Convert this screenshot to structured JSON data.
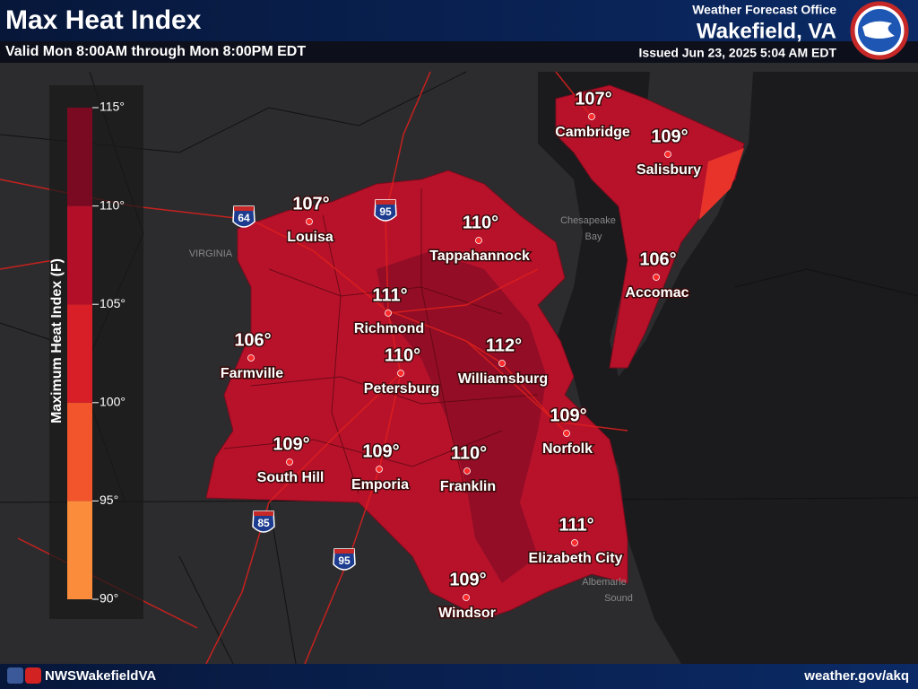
{
  "header": {
    "title": "Max Heat Index",
    "subtitle": "Valid Mon 8:00AM through Mon 8:00PM EDT",
    "office_label": "Weather Forecast Office",
    "office": "Wakefield, VA",
    "issued": "Issued Jun 23, 2025 5:04 AM EDT"
  },
  "legend": {
    "title": "Maximum Heat Index (F)",
    "ticks": [
      {
        "value": 90,
        "label": "90°"
      },
      {
        "value": 95,
        "label": "95°"
      },
      {
        "value": 100,
        "label": "100°"
      },
      {
        "value": 105,
        "label": "105°"
      },
      {
        "value": 110,
        "label": "110°"
      },
      {
        "value": 115,
        "label": "115°"
      }
    ],
    "colors": [
      "#fb8c3c",
      "#f2542c",
      "#d81f28",
      "#b30f29",
      "#7a0a22"
    ]
  },
  "cities": [
    {
      "name": "Cambridge",
      "value": 107,
      "label": "107°"
    },
    {
      "name": "Salisbury",
      "value": 109,
      "label": "109°"
    },
    {
      "name": "Louisa",
      "value": 107,
      "label": "107°"
    },
    {
      "name": "Tappahannock",
      "value": 110,
      "label": "110°"
    },
    {
      "name": "Accomac",
      "value": 106,
      "label": "106°"
    },
    {
      "name": "Richmond",
      "value": 111,
      "label": "111°"
    },
    {
      "name": "Farmville",
      "value": 106,
      "label": "106°"
    },
    {
      "name": "Petersburg",
      "value": 110,
      "label": "110°"
    },
    {
      "name": "Williamsburg",
      "value": 112,
      "label": "112°"
    },
    {
      "name": "Norfolk",
      "value": 109,
      "label": "109°"
    },
    {
      "name": "South Hill",
      "value": 109,
      "label": "109°"
    },
    {
      "name": "Emporia",
      "value": 109,
      "label": "109°"
    },
    {
      "name": "Franklin",
      "value": 110,
      "label": "110°"
    },
    {
      "name": "Elizabeth City",
      "value": 111,
      "label": "111°"
    },
    {
      "name": "Windsor",
      "value": 109,
      "label": "109°"
    }
  ],
  "shields": [
    "64",
    "95",
    "85",
    "95"
  ],
  "map_labels": [
    "VIRGINIA",
    "Chesapeake",
    "Bay",
    "Albemarle",
    "Sound"
  ],
  "footer": {
    "social": "NWSWakefieldVA",
    "url": "weather.gov/akq"
  }
}
